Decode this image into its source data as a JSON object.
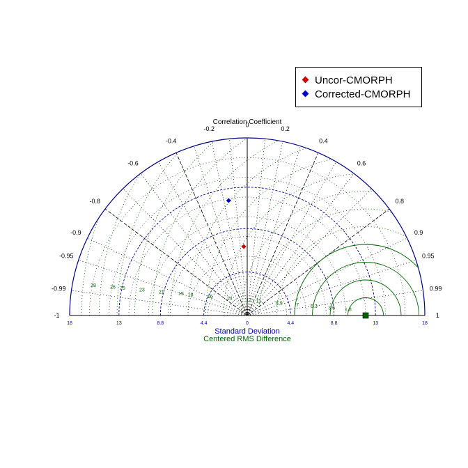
{
  "chart_data": {
    "type": "taylor-diagram",
    "title": "Correlation Coefficient",
    "xlabel": "Standard Deviation",
    "xlabel2": "Centered RMS Difference",
    "std_max": 18,
    "correlation_ticks": [
      "-1",
      "-0.99",
      "-0.95",
      "-0.9",
      "-0.8",
      "-0.6",
      "-0.4",
      "-0.2",
      "0",
      "0.2",
      "0.4",
      "0.6",
      "0.8",
      "0.9",
      "0.95",
      "0.99",
      "1"
    ],
    "std_ticks": [
      "18",
      "13",
      "8.8",
      "4.4",
      "0",
      "4.4",
      "8.8",
      "13",
      "18"
    ],
    "rms_contour_labels": [
      "28",
      "26",
      "25",
      "23",
      "21",
      "19",
      "18",
      "16",
      "14",
      "12",
      "11",
      "8.9",
      "7",
      "5.3",
      "3.5",
      "1.8"
    ],
    "reference": {
      "std": 12
    },
    "series": [
      {
        "name": "Uncor-CMORPH",
        "correlation": -0.05,
        "std": 7.0,
        "color": "#cc0000"
      },
      {
        "name": "Corrected-CMORPH",
        "correlation": -0.16,
        "std": 11.8,
        "color": "#0000cc"
      }
    ],
    "colors": {
      "axis": "#000080",
      "rms": "#006400",
      "grid": "#000000"
    }
  },
  "legend": {
    "items": [
      {
        "label": "Uncor-CMORPH",
        "color": "#cc0000"
      },
      {
        "label": "Corrected-CMORPH",
        "color": "#0000cc"
      }
    ]
  }
}
